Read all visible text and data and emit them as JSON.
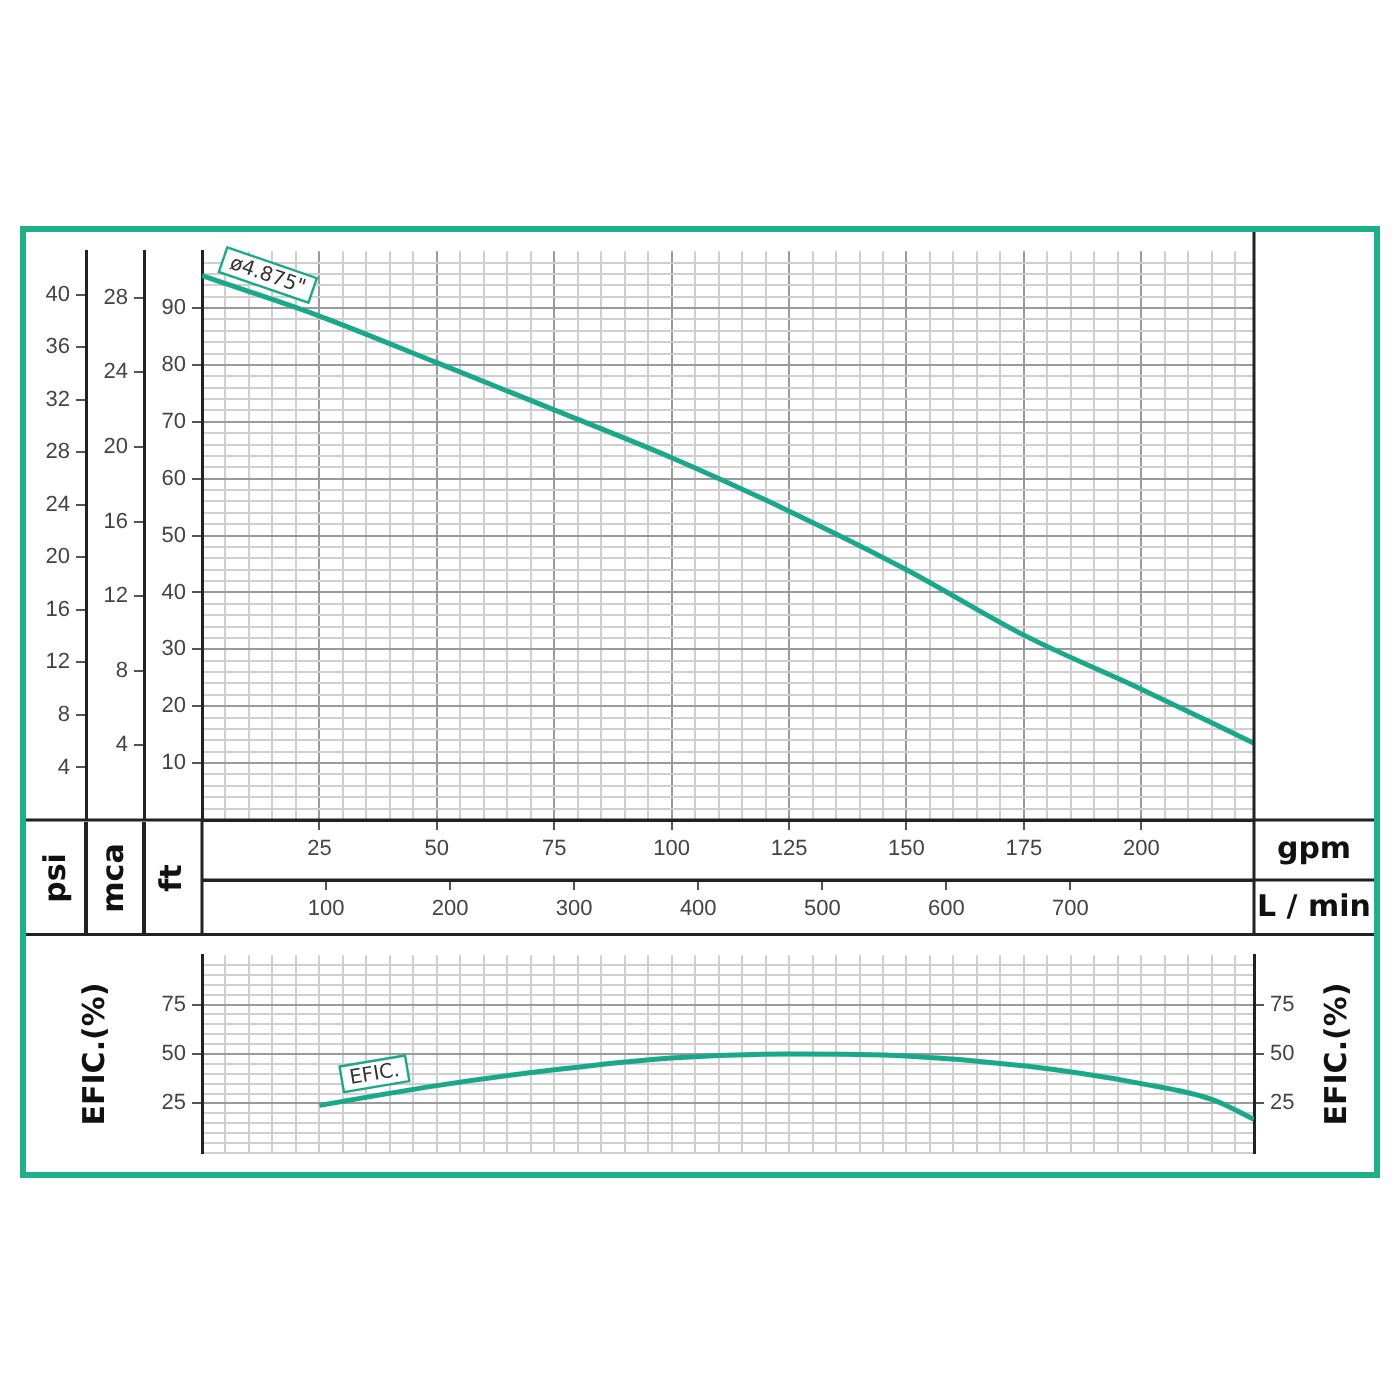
{
  "chart_data": [
    {
      "type": "line",
      "xlabel": "gpm",
      "x2label": "L / min",
      "ylabel": "ft",
      "y2label": "psi",
      "y3label": "mca",
      "x": [
        0,
        25,
        50,
        75,
        100,
        125,
        150,
        175,
        200,
        224
      ],
      "xlim": [
        0,
        224
      ],
      "xticks": [
        {
          "value": 0,
          "label": null
        },
        {
          "value": 5,
          "label": null
        },
        {
          "value": 10,
          "label": null
        },
        {
          "value": 15,
          "label": null
        },
        {
          "value": 20,
          "label": null
        },
        25,
        {
          "value": 30,
          "label": null
        },
        {
          "value": 35,
          "label": null
        },
        {
          "value": 40,
          "label": null
        },
        {
          "value": 45,
          "label": null
        },
        50,
        {
          "value": 55,
          "label": null
        },
        {
          "value": 60,
          "label": null
        },
        {
          "value": 65,
          "label": null
        },
        {
          "value": 70,
          "label": null
        },
        75,
        {
          "value": 80,
          "label": null
        },
        {
          "value": 85,
          "label": null
        },
        {
          "value": 90,
          "label": null
        },
        {
          "value": 95,
          "label": null
        },
        100,
        {
          "value": 105,
          "label": null
        },
        {
          "value": 110,
          "label": null
        },
        {
          "value": 115,
          "label": null
        },
        {
          "value": 120,
          "label": null
        },
        125,
        {
          "value": 130,
          "label": null
        },
        {
          "value": 135,
          "label": null
        },
        {
          "value": 140,
          "label": null
        },
        {
          "value": 145,
          "label": null
        },
        150,
        {
          "value": 155,
          "label": null
        },
        {
          "value": 160,
          "label": null
        },
        {
          "value": 165,
          "label": null
        },
        {
          "value": 170,
          "label": null
        },
        175,
        {
          "value": 180,
          "label": null
        },
        {
          "value": 185,
          "label": null
        },
        {
          "value": 190,
          "label": null
        },
        {
          "value": 195,
          "label": null
        },
        200,
        {
          "value": 205,
          "label": null
        },
        {
          "value": 210,
          "label": null
        },
        {
          "value": 215,
          "label": null
        },
        {
          "value": 220,
          "label": null
        }
      ],
      "x2lim": [
        0,
        848
      ],
      "x2ticks": [
        100,
        200,
        300,
        400,
        500,
        600,
        700
      ],
      "ylim": [
        0,
        100
      ],
      "yticks": [
        {
          "value": 0,
          "label": null
        },
        {
          "value": 2,
          "label": null
        },
        {
          "value": 4,
          "label": null
        },
        {
          "value": 6,
          "label": null
        },
        {
          "value": 8,
          "label": null
        },
        10,
        {
          "value": 12,
          "label": null
        },
        {
          "value": 14,
          "label": null
        },
        {
          "value": 16,
          "label": null
        },
        {
          "value": 18,
          "label": null
        },
        20,
        {
          "value": 22,
          "label": null
        },
        {
          "value": 24,
          "label": null
        },
        {
          "value": 26,
          "label": null
        },
        {
          "value": 28,
          "label": null
        },
        30,
        {
          "value": 32,
          "label": null
        },
        {
          "value": 34,
          "label": null
        },
        {
          "value": 36,
          "label": null
        },
        {
          "value": 38,
          "label": null
        },
        40,
        {
          "value": 42,
          "label": null
        },
        {
          "value": 44,
          "label": null
        },
        {
          "value": 46,
          "label": null
        },
        {
          "value": 48,
          "label": null
        },
        50,
        {
          "value": 52,
          "label": null
        },
        {
          "value": 54,
          "label": null
        },
        {
          "value": 56,
          "label": null
        },
        {
          "value": 58,
          "label": null
        },
        60,
        {
          "value": 62,
          "label": null
        },
        {
          "value": 64,
          "label": null
        },
        {
          "value": 66,
          "label": null
        },
        {
          "value": 68,
          "label": null
        },
        70,
        {
          "value": 72,
          "label": null
        },
        {
          "value": 74,
          "label": null
        },
        {
          "value": 76,
          "label": null
        },
        {
          "value": 78,
          "label": null
        },
        80,
        {
          "value": 82,
          "label": null
        },
        {
          "value": 84,
          "label": null
        },
        {
          "value": 86,
          "label": null
        },
        {
          "value": 88,
          "label": null
        },
        90,
        {
          "value": 92,
          "label": null
        },
        {
          "value": 94,
          "label": null
        },
        {
          "value": 96,
          "label": null
        },
        {
          "value": 98,
          "label": null
        }
      ],
      "y2lim": [
        0,
        43.3
      ],
      "y2ticks": [
        4,
        8,
        12,
        16,
        20,
        24,
        28,
        32,
        36,
        40
      ],
      "y3lim": [
        0,
        30.5
      ],
      "y3ticks": [
        4,
        8,
        12,
        16,
        20,
        24,
        28
      ],
      "grid": true,
      "series": [
        {
          "name": "ø4.875\"",
          "color": "#1aa88a",
          "values": [
            95.7,
            88.6,
            80.4,
            72.1,
            63.7,
            54.3,
            44.0,
            32.5,
            23.0,
            13.5
          ]
        }
      ]
    },
    {
      "type": "line",
      "ylabel": "EFIC.(%)",
      "y2label": "EFIC.(%)",
      "x": [
        25,
        50,
        75,
        100,
        125,
        150,
        175,
        200,
        215,
        224
      ],
      "xlim": [
        0,
        224
      ],
      "xticks": [
        {
          "value": 0,
          "label": null
        },
        {
          "value": 5,
          "label": null
        },
        {
          "value": 10,
          "label": null
        },
        {
          "value": 15,
          "label": null
        },
        {
          "value": 20,
          "label": null
        },
        {
          "value": 25,
          "label": null
        },
        {
          "value": 30,
          "label": null
        },
        {
          "value": 35,
          "label": null
        },
        {
          "value": 40,
          "label": null
        },
        {
          "value": 45,
          "label": null
        },
        {
          "value": 50,
          "label": null
        },
        {
          "value": 55,
          "label": null
        },
        {
          "value": 60,
          "label": null
        },
        {
          "value": 65,
          "label": null
        },
        {
          "value": 70,
          "label": null
        },
        {
          "value": 75,
          "label": null
        },
        {
          "value": 80,
          "label": null
        },
        {
          "value": 85,
          "label": null
        },
        {
          "value": 90,
          "label": null
        },
        {
          "value": 95,
          "label": null
        },
        {
          "value": 100,
          "label": null
        },
        {
          "value": 105,
          "label": null
        },
        {
          "value": 110,
          "label": null
        },
        {
          "value": 115,
          "label": null
        },
        {
          "value": 120,
          "label": null
        },
        {
          "value": 125,
          "label": null
        },
        {
          "value": 130,
          "label": null
        },
        {
          "value": 135,
          "label": null
        },
        {
          "value": 140,
          "label": null
        },
        {
          "value": 145,
          "label": null
        },
        {
          "value": 150,
          "label": null
        },
        {
          "value": 155,
          "label": null
        },
        {
          "value": 160,
          "label": null
        },
        {
          "value": 165,
          "label": null
        },
        {
          "value": 170,
          "label": null
        },
        {
          "value": 175,
          "label": null
        },
        {
          "value": 180,
          "label": null
        },
        {
          "value": 185,
          "label": null
        },
        {
          "value": 190,
          "label": null
        },
        {
          "value": 195,
          "label": null
        },
        {
          "value": 200,
          "label": null
        },
        {
          "value": 205,
          "label": null
        },
        {
          "value": 210,
          "label": null
        },
        {
          "value": 215,
          "label": null
        },
        {
          "value": 220,
          "label": null
        }
      ],
      "ylim": [
        0,
        100
      ],
      "yticks": [
        {
          "value": 0,
          "label": null
        },
        {
          "value": 5,
          "label": null
        },
        {
          "value": 10,
          "label": null
        },
        {
          "value": 15,
          "label": null
        },
        {
          "value": 20,
          "label": null
        },
        25,
        {
          "value": 30,
          "label": null
        },
        {
          "value": 35,
          "label": null
        },
        {
          "value": 40,
          "label": null
        },
        {
          "value": 45,
          "label": null
        },
        50,
        {
          "value": 55,
          "label": null
        },
        {
          "value": 60,
          "label": null
        },
        {
          "value": 65,
          "label": null
        },
        {
          "value": 70,
          "label": null
        },
        75,
        {
          "value": 80,
          "label": null
        },
        {
          "value": 85,
          "label": null
        },
        {
          "value": 90,
          "label": null
        },
        {
          "value": 95,
          "label": null
        }
      ],
      "y2lim": [
        0,
        100
      ],
      "y2ticks": [
        25,
        50,
        75
      ],
      "grid": true,
      "tick_labels": "y",
      "series": [
        {
          "name": "EFIC.",
          "color": "#1aa88a",
          "values": [
            24,
            34,
            42,
            48,
            50,
            49,
            44,
            35,
            27,
            17
          ]
        }
      ]
    }
  ]
}
